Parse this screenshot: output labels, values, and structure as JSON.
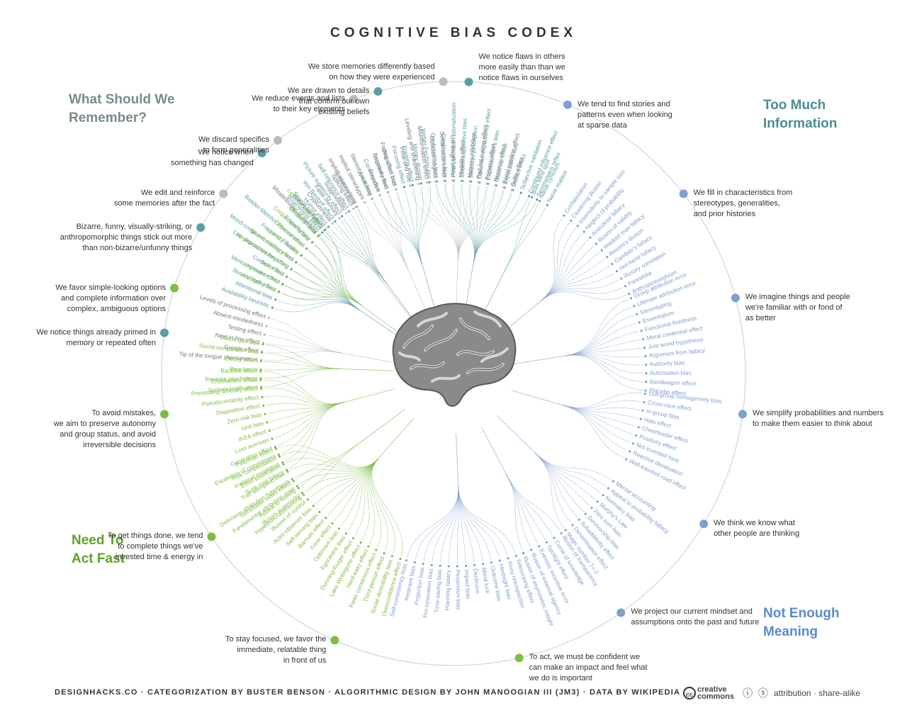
{
  "title": "COGNITIVE BIAS CODEX",
  "quadrants": {
    "remember": [
      "What Should We",
      "Remember?"
    ],
    "info": [
      "Too Much",
      "Information"
    ],
    "meaning": [
      "Not Enough",
      "Meaning"
    ],
    "fast": [
      "Need To",
      "Act Fast"
    ]
  },
  "colors": {
    "remember": "#b8bcbd",
    "info": "#5a9ea3",
    "meaning": "#7f9fd0",
    "fast": "#7dbe44",
    "text": "#333333"
  },
  "strategies": [
    {
      "quadrant": "info",
      "lines": [
        "We notice things already primed in",
        "memory or repeated often"
      ]
    },
    {
      "quadrant": "info",
      "lines": [
        "Bizarre, funny, visually-striking, or",
        "anthropomorphic things stick out more",
        "than non-bizarre/unfunny things"
      ]
    },
    {
      "quadrant": "info",
      "lines": [
        "We notice when",
        "something has changed"
      ]
    },
    {
      "quadrant": "info",
      "lines": [
        "We are drawn to details",
        "that confirm our own",
        "existing beliefs"
      ]
    },
    {
      "quadrant": "info",
      "lines": [
        "We notice flaws in others",
        "more easily than than we",
        "notice flaws in ourselves"
      ]
    },
    {
      "quadrant": "meaning",
      "lines": [
        "We tend to find stories and",
        "patterns even when looking",
        "at sparse data"
      ]
    },
    {
      "quadrant": "meaning",
      "lines": [
        "We fill in characteristics from",
        "stereotypes, generalities,",
        "and prior histories"
      ]
    },
    {
      "quadrant": "meaning",
      "lines": [
        "We imagine things and people",
        "we're familiar with or fond of",
        "as better"
      ]
    },
    {
      "quadrant": "meaning",
      "lines": [
        "We simplify probabilities and numbers",
        "to make them easier to think about"
      ]
    },
    {
      "quadrant": "meaning",
      "lines": [
        "We think we know what",
        "other people are thinking"
      ]
    },
    {
      "quadrant": "meaning",
      "lines": [
        "We project our current mindset and",
        "assumptions onto the past and future"
      ]
    },
    {
      "quadrant": "fast",
      "lines": [
        "To act, we must be confident we",
        "can make an impact and feel what",
        "we do is important"
      ]
    },
    {
      "quadrant": "fast",
      "lines": [
        "To stay focused, we favor the",
        "immediate, relatable thing",
        "in front of us"
      ]
    },
    {
      "quadrant": "fast",
      "lines": [
        "To get things done, we tend",
        "to complete things we've",
        "invested time & energy in"
      ]
    },
    {
      "quadrant": "fast",
      "lines": [
        "To avoid mistakes,",
        "we aim to preserve autonomy",
        "and group status, and avoid",
        "irreversible decisions"
      ]
    },
    {
      "quadrant": "fast",
      "lines": [
        "We favor simple-looking options",
        "and complete information over",
        "complex, ambiguous options"
      ]
    },
    {
      "quadrant": "remember",
      "lines": [
        "We edit and reinforce",
        "some memories after the fact"
      ]
    },
    {
      "quadrant": "remember",
      "lines": [
        "We discard specifics",
        "to form generalities"
      ]
    },
    {
      "quadrant": "remember",
      "lines": [
        "We reduce events and lists",
        "to their key elements"
      ]
    },
    {
      "quadrant": "remember",
      "lines": [
        "We store memories differently based",
        "on how they were experienced"
      ]
    }
  ],
  "groups": [
    {
      "quadrant": "remember",
      "biases": [
        "Tip of the tongue phenomenon",
        "Google effect",
        "Next-in-line effect",
        "Testing effect",
        "Absent-mindedness",
        "Levels of processing effect"
      ]
    },
    {
      "quadrant": "info",
      "biases": [
        "Availability heuristic",
        "Attentional bias",
        "Illusory truth effect",
        "Mere exposure effect",
        "Context effect",
        "Cue-dependent forgetting",
        "Mood-congruent memory bias",
        "Frequency illusion",
        "Baader-Meinhof Phenomenon",
        "Empathy gap",
        "Omission bias",
        "Base rate fallacy"
      ]
    },
    {
      "quadrant": "info",
      "biases": [
        "Bizarreness effect",
        "Humor effect",
        "Von Restorff effect",
        "Picture superiority effect",
        "Self-relevance effect",
        "Negativity bias"
      ]
    },
    {
      "quadrant": "info",
      "biases": [
        "Anchoring",
        "Conservatism",
        "Contrast effect",
        "Distinction bias",
        "Focusing effect",
        "Framing effect",
        "Money illusion",
        "Weber-Fechner law"
      ]
    },
    {
      "quadrant": "info",
      "biases": [
        "Confirmation bias",
        "Congruence bias",
        "Post-purchase rationalization",
        "Choice-supportive bias",
        "Selective perception",
        "Observer-expectancy effect",
        "Experimenter's bias",
        "Observer effect",
        "Expectation bias",
        "Ostrich effect",
        "Subjective validation",
        "Continued influence effect",
        "Semmelweis reflex"
      ]
    },
    {
      "quadrant": "info",
      "biases": [
        "Bias blind spot",
        "Naïve cynicism",
        "Naïve realism"
      ]
    },
    {
      "quadrant": "meaning",
      "biases": [
        "Confabulation",
        "Clustering illusion",
        "Insensitivity to sample size",
        "Neglect of probability",
        "Anecdotal fallacy",
        "Illusion of validity",
        "Masked man fallacy",
        "Recency illusion",
        "Gambler's fallacy",
        "Hot-hand fallacy",
        "Illusory correlation",
        "Pareidolia",
        "Anthropomorphism"
      ]
    },
    {
      "quadrant": "meaning",
      "biases": [
        "Group attribution error",
        "Ultimate attribution error",
        "Stereotyping",
        "Essentialism",
        "Functional fixedness",
        "Moral credential effect",
        "Just-world hypothesis",
        "Argument from fallacy",
        "Authority bias",
        "Automation bias",
        "Bandwagon effect",
        "Placebo effect"
      ]
    },
    {
      "quadrant": "meaning",
      "biases": [
        "Out-group homogeneity bias",
        "Cross-race effect",
        "In-group bias",
        "Halo effect",
        "Cheerleader effect",
        "Positivity effect",
        "Not invented here",
        "Reactive devaluation",
        "Well-traveled road effect"
      ]
    },
    {
      "quadrant": "meaning",
      "biases": [
        "Mental accounting",
        "Appeal to probability fallacy",
        "Normalcy bias",
        "Murphy's Law",
        "Zero sum bias",
        "Survivorship bias",
        "Subadditivity effect",
        "Denomination effect",
        "Magic number 7+-2"
      ]
    },
    {
      "quadrant": "meaning",
      "biases": [
        "Illusion of transparency",
        "Curse of knowledge",
        "Spotlight effect",
        "Extrinsic incentive error",
        "Illusion of external agency",
        "Illusion of asymmetric insight"
      ]
    },
    {
      "quadrant": "meaning",
      "biases": [
        "Telescoping effect",
        "Rosy retrospection",
        "Hindsight bias",
        "Outcome bias",
        "Moral luck",
        "Declinism",
        "Impact bias",
        "Pessimism bias",
        "Planning fallacy",
        "Time-saving bias",
        "Pro-innovation bias",
        "Projection bias",
        "Restraint bias",
        "Self-consistency bias"
      ]
    },
    {
      "quadrant": "fast",
      "biases": [
        "Overconfidence effect",
        "Social desirability bias",
        "Third-person effect",
        "False consensus effect",
        "Hard-easy effect",
        "Lake Wobegone effect",
        "Dunning-Kruger effect",
        "Egocentric bias",
        "Optimism bias",
        "Forer effect",
        "Barnum effect",
        "Self-serving bias",
        "Actor-observer bias",
        "Illusion of control",
        "Illusory superiority",
        "Fundamental attribution error",
        "Defensive attribution hypothesis",
        "Trait ascription bias",
        "Effort justification",
        "Risk compensation",
        "Peltzman effect"
      ]
    },
    {
      "quadrant": "fast",
      "biases": [
        "Hyperbolic discounting",
        "Appeal to novelty",
        "Identifiable victim effect"
      ]
    },
    {
      "quadrant": "fast",
      "biases": [
        "Sunk cost fallacy",
        "Irrational escalation",
        "Escalation of commitment",
        "Generation effect",
        "Loss aversion",
        "IKEA effect",
        "Unit bias",
        "Zero-risk bias",
        "Disposition effect",
        "Pseudocertainty effect",
        "Processing difficulty effect",
        "Endowment effect",
        "Backfire effect"
      ]
    },
    {
      "quadrant": "fast",
      "biases": [
        "System justification",
        "Reverse psychology",
        "Reactance",
        "Decoy effect",
        "Social comparison bias",
        "Status quo bias"
      ]
    },
    {
      "quadrant": "fast",
      "biases": [
        "Ambiguity bias",
        "Information bias",
        "Belief bias",
        "Rhyme as reason effect",
        "Bike-shedding effect",
        "Law of Triviality",
        "Delmore effect",
        "Conjunction fallacy",
        "Occam's razor",
        "Less-is-better effect"
      ]
    },
    {
      "quadrant": "remember",
      "biases": [
        "Misattribution of memory",
        "Source confusion",
        "Cryptomnesia",
        "False memory",
        "Suggestibility",
        "Spacing effect"
      ]
    },
    {
      "quadrant": "remember",
      "biases": [
        "Implicit associations",
        "Implicit stereotypes",
        "Stereotypical bias",
        "Prejudice",
        "Negativity bias",
        "Fading affect bias"
      ]
    },
    {
      "quadrant": "remember",
      "biases": [
        "Peak-end rule",
        "Leveling and sharpening",
        "Misinformation effect",
        "Duration neglect",
        "Serial recall effect",
        "List-length effect",
        "Modality effect",
        "Memory inhibition",
        "Part-list cueing effect",
        "Primacy effect",
        "Recency effect",
        "Serial position effect",
        "Suffix effect"
      ]
    }
  ],
  "footer": "DESIGNHACKS.CO · CATEGORIZATION BY BUSTER BENSON · ALGORITHMIC DESIGN BY JOHN MANOOGIAN III (JM3) · DATA BY WIKIPEDIA",
  "license": {
    "cc_abbr": "cc",
    "cc_word_1": "creative",
    "cc_word_2": "commons",
    "icons": "ⓘ ⓢ",
    "text": "attribution · share-alike"
  }
}
